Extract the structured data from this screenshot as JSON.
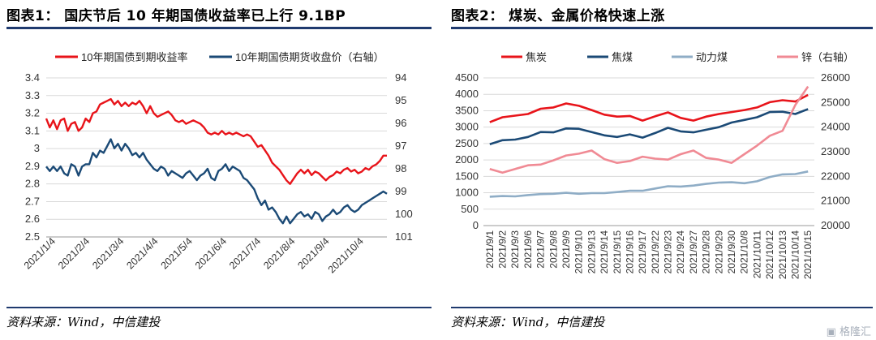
{
  "left": {
    "title": "图表1： 国庆节后 10 年期国债收益率已上行 9.1BP",
    "source": "资料来源：Wind，中信建投",
    "chart_data": {
      "type": "line",
      "legend": [
        "10年期国债到期收益率",
        "10年期国债期货收盘价（右轴）"
      ],
      "x_ticks": [
        "2021/1/4",
        "2021/2/4",
        "2021/3/4",
        "2021/4/4",
        "2021/5/4",
        "2021/6/4",
        "2021/7/4",
        "2021/8/4",
        "2021/9/4",
        "2021/10/4"
      ],
      "y_left": {
        "min": 2.5,
        "max": 3.4,
        "ticks": [
          "3.4",
          "3.3",
          "3.2",
          "3.1",
          "3",
          "2.9",
          "2.8",
          "2.7",
          "2.6",
          "2.5"
        ]
      },
      "y_right": {
        "min": 94,
        "max": 101,
        "inverted": true,
        "ticks": [
          "94",
          "95",
          "96",
          "97",
          "98",
          "99",
          "100",
          "101"
        ]
      },
      "series": [
        {
          "name": "10年期国债到期收益率",
          "axis": "left",
          "color": "#e8141a",
          "points": [
            [
              0,
              3.17
            ],
            [
              2,
              3.12
            ],
            [
              4,
              3.16
            ],
            [
              6,
              3.11
            ],
            [
              8,
              3.16
            ],
            [
              10,
              3.17
            ],
            [
              12,
              3.1
            ],
            [
              14,
              3.14
            ],
            [
              16,
              3.15
            ],
            [
              18,
              3.1
            ],
            [
              20,
              3.12
            ],
            [
              22,
              3.17
            ],
            [
              24,
              3.15
            ],
            [
              26,
              3.2
            ],
            [
              28,
              3.21
            ],
            [
              30,
              3.25
            ],
            [
              32,
              3.26
            ],
            [
              34,
              3.27
            ],
            [
              36,
              3.28
            ],
            [
              38,
              3.25
            ],
            [
              40,
              3.27
            ],
            [
              42,
              3.24
            ],
            [
              44,
              3.26
            ],
            [
              46,
              3.24
            ],
            [
              48,
              3.26
            ],
            [
              50,
              3.25
            ],
            [
              52,
              3.27
            ],
            [
              54,
              3.24
            ],
            [
              56,
              3.2
            ],
            [
              58,
              3.24
            ],
            [
              60,
              3.2
            ],
            [
              62,
              3.18
            ],
            [
              64,
              3.19
            ],
            [
              66,
              3.2
            ],
            [
              68,
              3.21
            ],
            [
              70,
              3.19
            ],
            [
              72,
              3.16
            ],
            [
              74,
              3.15
            ],
            [
              76,
              3.16
            ],
            [
              78,
              3.14
            ],
            [
              80,
              3.15
            ],
            [
              82,
              3.16
            ],
            [
              84,
              3.15
            ],
            [
              86,
              3.14
            ],
            [
              88,
              3.12
            ],
            [
              90,
              3.09
            ],
            [
              92,
              3.08
            ],
            [
              94,
              3.09
            ],
            [
              96,
              3.08
            ],
            [
              98,
              3.1
            ],
            [
              100,
              3.08
            ],
            [
              102,
              3.09
            ],
            [
              104,
              3.08
            ],
            [
              106,
              3.09
            ],
            [
              108,
              3.08
            ],
            [
              110,
              3.07
            ],
            [
              112,
              3.08
            ],
            [
              114,
              3.07
            ],
            [
              116,
              3.04
            ],
            [
              118,
              3.01
            ],
            [
              120,
              3.02
            ],
            [
              122,
              2.99
            ],
            [
              124,
              2.96
            ],
            [
              126,
              2.92
            ],
            [
              128,
              2.9
            ],
            [
              130,
              2.88
            ],
            [
              132,
              2.85
            ],
            [
              134,
              2.82
            ],
            [
              136,
              2.8
            ],
            [
              138,
              2.83
            ],
            [
              140,
              2.86
            ],
            [
              142,
              2.88
            ],
            [
              144,
              2.86
            ],
            [
              146,
              2.88
            ],
            [
              148,
              2.85
            ],
            [
              150,
              2.87
            ],
            [
              152,
              2.86
            ],
            [
              154,
              2.84
            ],
            [
              156,
              2.82
            ],
            [
              158,
              2.84
            ],
            [
              160,
              2.85
            ],
            [
              162,
              2.87
            ],
            [
              164,
              2.86
            ],
            [
              166,
              2.88
            ],
            [
              168,
              2.89
            ],
            [
              170,
              2.87
            ],
            [
              172,
              2.88
            ],
            [
              174,
              2.86
            ],
            [
              176,
              2.87
            ],
            [
              178,
              2.89
            ],
            [
              180,
              2.88
            ],
            [
              182,
              2.9
            ],
            [
              184,
              2.91
            ],
            [
              186,
              2.93
            ],
            [
              188,
              2.96
            ],
            [
              190,
              2.96
            ]
          ]
        },
        {
          "name": "10年期国债期货收盘价（右轴）",
          "axis": "right",
          "color": "#1b4a76",
          "points": [
            [
              0,
              97.9
            ],
            [
              2,
              98.1
            ],
            [
              4,
              97.9
            ],
            [
              6,
              98.1
            ],
            [
              8,
              97.9
            ],
            [
              10,
              98.2
            ],
            [
              12,
              98.3
            ],
            [
              14,
              97.8
            ],
            [
              16,
              97.9
            ],
            [
              18,
              98.3
            ],
            [
              20,
              97.9
            ],
            [
              22,
              97.8
            ],
            [
              24,
              97.8
            ],
            [
              26,
              97.3
            ],
            [
              28,
              97.5
            ],
            [
              30,
              97.2
            ],
            [
              32,
              97.3
            ],
            [
              34,
              97.0
            ],
            [
              36,
              96.7
            ],
            [
              38,
              97.1
            ],
            [
              40,
              96.9
            ],
            [
              42,
              97.2
            ],
            [
              44,
              96.9
            ],
            [
              46,
              97.1
            ],
            [
              48,
              97.4
            ],
            [
              50,
              97.3
            ],
            [
              52,
              97.5
            ],
            [
              54,
              97.3
            ],
            [
              56,
              97.6
            ],
            [
              58,
              97.8
            ],
            [
              60,
              98.0
            ],
            [
              62,
              98.1
            ],
            [
              64,
              97.9
            ],
            [
              66,
              98.0
            ],
            [
              68,
              98.3
            ],
            [
              70,
              98.1
            ],
            [
              72,
              98.2
            ],
            [
              74,
              98.3
            ],
            [
              76,
              98.4
            ],
            [
              78,
              98.2
            ],
            [
              80,
              98.1
            ],
            [
              82,
              98.3
            ],
            [
              84,
              98.5
            ],
            [
              86,
              98.3
            ],
            [
              88,
              98.2
            ],
            [
              90,
              98.0
            ],
            [
              92,
              98.4
            ],
            [
              94,
              98.5
            ],
            [
              96,
              98.1
            ],
            [
              98,
              98.0
            ],
            [
              100,
              97.8
            ],
            [
              102,
              98.1
            ],
            [
              104,
              97.9
            ],
            [
              106,
              98.0
            ],
            [
              108,
              98.1
            ],
            [
              110,
              98.4
            ],
            [
              112,
              98.5
            ],
            [
              114,
              98.7
            ],
            [
              116,
              98.9
            ],
            [
              118,
              99.3
            ],
            [
              120,
              99.6
            ],
            [
              122,
              99.4
            ],
            [
              124,
              99.8
            ],
            [
              126,
              99.7
            ],
            [
              128,
              99.9
            ],
            [
              130,
              100.2
            ],
            [
              132,
              100.4
            ],
            [
              134,
              100.1
            ],
            [
              136,
              100.4
            ],
            [
              138,
              100.2
            ],
            [
              140,
              100.0
            ],
            [
              142,
              99.9
            ],
            [
              144,
              100.1
            ],
            [
              146,
              100.0
            ],
            [
              148,
              100.2
            ],
            [
              150,
              99.9
            ],
            [
              152,
              100.0
            ],
            [
              154,
              100.3
            ],
            [
              156,
              100.1
            ],
            [
              158,
              100.0
            ],
            [
              160,
              99.8
            ],
            [
              162,
              100.0
            ],
            [
              164,
              99.9
            ],
            [
              166,
              99.7
            ],
            [
              168,
              99.6
            ],
            [
              170,
              99.8
            ],
            [
              172,
              99.9
            ],
            [
              174,
              99.8
            ],
            [
              176,
              99.6
            ],
            [
              178,
              99.5
            ],
            [
              180,
              99.4
            ],
            [
              182,
              99.3
            ],
            [
              184,
              99.2
            ],
            [
              186,
              99.1
            ],
            [
              188,
              99.0
            ],
            [
              190,
              99.1
            ]
          ]
        }
      ]
    }
  },
  "right": {
    "title": "图表2： 煤炭、金属价格快速上涨",
    "source": "资料来源：Wind，中信建投",
    "chart_data": {
      "type": "line",
      "categories": [
        "2021/9/1",
        "2021/9/2",
        "2021/9/3",
        "2021/9/6",
        "2021/9/7",
        "2021/9/8",
        "2021/9/9",
        "2021/9/10",
        "2021/9/13",
        "2021/9/14",
        "2021/9/15",
        "2021/9/16",
        "2021/9/17",
        "2021/9/22",
        "2021/9/23",
        "2021/9/24",
        "2021/9/27",
        "2021/9/28",
        "2021/9/29",
        "2021/9/30",
        "2021/10/8",
        "2021/10/11",
        "2021/10/12",
        "2021/10/13",
        "2021/10/14",
        "2021/10/15"
      ],
      "y_left": {
        "min": 0,
        "max": 4500,
        "ticks": [
          "4500",
          "4000",
          "3500",
          "3000",
          "2500",
          "2000",
          "1500",
          "1000",
          "500",
          "0"
        ]
      },
      "y_right": {
        "min": 20000,
        "max": 26000,
        "ticks": [
          "26000",
          "25000",
          "24000",
          "23000",
          "22000",
          "21000",
          "20000"
        ]
      },
      "legend": [
        "焦炭",
        "焦煤",
        "动力煤",
        "锌（右轴）"
      ],
      "series": [
        {
          "name": "焦炭",
          "axis": "left",
          "color": "#e8141a",
          "values": [
            3150,
            3300,
            3350,
            3400,
            3560,
            3600,
            3720,
            3650,
            3520,
            3380,
            3320,
            3340,
            3200,
            3330,
            3450,
            3280,
            3200,
            3320,
            3400,
            3460,
            3520,
            3600,
            3760,
            3820,
            3780,
            3980
          ]
        },
        {
          "name": "焦煤",
          "axis": "left",
          "color": "#1b4a76",
          "values": [
            2480,
            2600,
            2620,
            2700,
            2850,
            2840,
            2960,
            2950,
            2850,
            2750,
            2700,
            2780,
            2680,
            2820,
            2980,
            2870,
            2840,
            2920,
            3000,
            3140,
            3220,
            3300,
            3460,
            3470,
            3400,
            3550
          ]
        },
        {
          "name": "动力煤",
          "axis": "left",
          "color": "#8fadc6",
          "values": [
            880,
            900,
            890,
            930,
            960,
            970,
            1000,
            970,
            990,
            990,
            1020,
            1060,
            1060,
            1130,
            1200,
            1190,
            1220,
            1270,
            1310,
            1320,
            1290,
            1350,
            1480,
            1560,
            1570,
            1650
          ]
        },
        {
          "name": "锌（右轴）",
          "axis": "right",
          "color": "#f08a94",
          "values": [
            22300,
            22150,
            22300,
            22450,
            22480,
            22650,
            22850,
            22920,
            23050,
            22700,
            22550,
            22620,
            22800,
            22720,
            22680,
            22900,
            23050,
            22750,
            22680,
            22550,
            22900,
            23250,
            23650,
            23850,
            24900,
            25650
          ]
        }
      ]
    }
  }
}
